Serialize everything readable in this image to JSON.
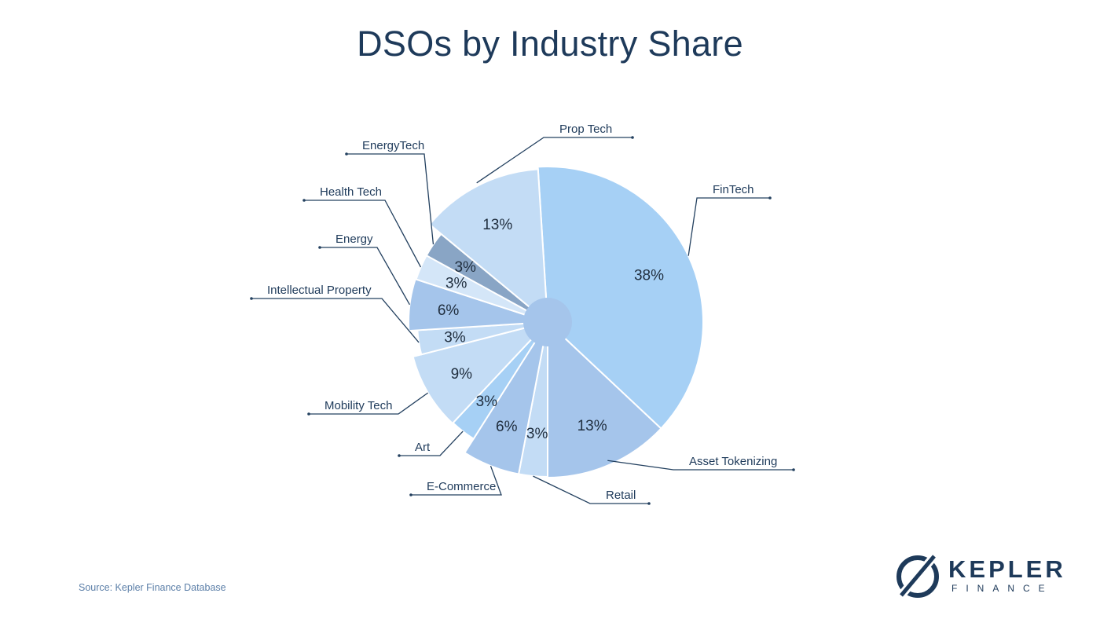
{
  "title": "DSOs by Industry Share",
  "source": "Source: Kepler Finance Database",
  "logo": {
    "name": "KEPLER",
    "sub": "FINANCE",
    "color": "#1e3a5a"
  },
  "chart_data": {
    "type": "pie",
    "title": "DSOs by Industry Share",
    "legend": "none",
    "slices": [
      {
        "label": "FinTech",
        "value": 38,
        "text": "38%",
        "color": "#a6d0f5"
      },
      {
        "label": "Asset Tokenizing",
        "value": 13,
        "text": "13%",
        "color": "#a5c5eb"
      },
      {
        "label": "Retail",
        "value": 3,
        "text": "3%",
        "color": "#c3dcf5"
      },
      {
        "label": "E-Commerce",
        "value": 6,
        "text": "6%",
        "color": "#a5c5eb"
      },
      {
        "label": "Art",
        "value": 3,
        "text": "3%",
        "color": "#a6d0f5"
      },
      {
        "label": "Mobility Tech",
        "value": 9,
        "text": "9%",
        "color": "#c3dcf5"
      },
      {
        "label": "Intellectual Property",
        "value": 3,
        "text": "3%",
        "color": "#c3dcf5"
      },
      {
        "label": "Energy",
        "value": 6,
        "text": "6%",
        "color": "#a5c5eb"
      },
      {
        "label": "Health Tech",
        "value": 3,
        "text": "3%",
        "color": "#d4e6f8"
      },
      {
        "label": "EnergyTech",
        "value": 3,
        "text": "3%",
        "color": "#89a5c5"
      },
      {
        "label": "Prop Tech",
        "value": 13,
        "text": "13%",
        "color": "#c3dcf5"
      }
    ]
  }
}
